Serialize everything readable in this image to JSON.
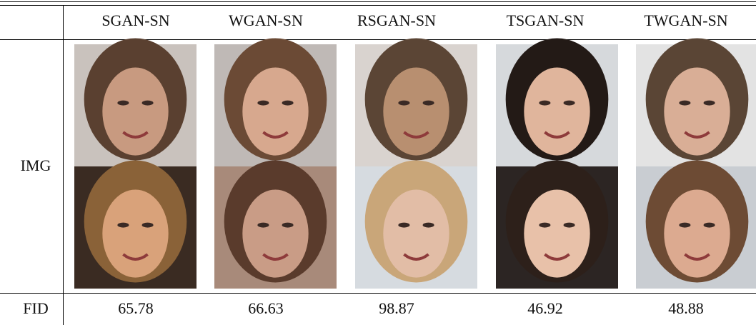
{
  "table": {
    "columns": [
      "SGAN-SN",
      "WGAN-SN",
      "RSGAN-SN",
      "TSGAN-SN",
      "TWGAN-SN"
    ],
    "rows": [
      {
        "label": "IMG"
      },
      {
        "label": "FID",
        "values": [
          65.78,
          66.63,
          98.87,
          46.92,
          48.88
        ]
      }
    ]
  }
}
